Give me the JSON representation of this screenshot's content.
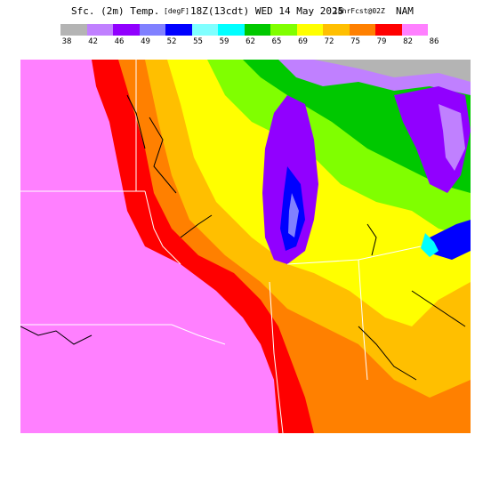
{
  "header": {
    "field": "Sfc. (2m) Temp.",
    "units": "[degF]",
    "valid": "18Z(13cdt) WED 14 May 2025",
    "forecast": "18hrFcst@02Z",
    "model": "NAM"
  },
  "legend": {
    "values": [
      "38",
      "42",
      "46",
      "49",
      "52",
      "55",
      "59",
      "62",
      "65",
      "69",
      "72",
      "75",
      "79",
      "82",
      "86"
    ],
    "colors": [
      "#b4b4b4",
      "#c080ff",
      "#9100ff",
      "#8080ff",
      "#0000ff",
      "#80ffff",
      "#00ffff",
      "#00c800",
      "#80ff00",
      "#ffff00",
      "#ffbf00",
      "#ff8000",
      "#ff0000",
      "#ff80ff"
    ]
  },
  "map": {
    "region": "Upper Midwest / Great Lakes",
    "background_color": "#ff80ff"
  }
}
